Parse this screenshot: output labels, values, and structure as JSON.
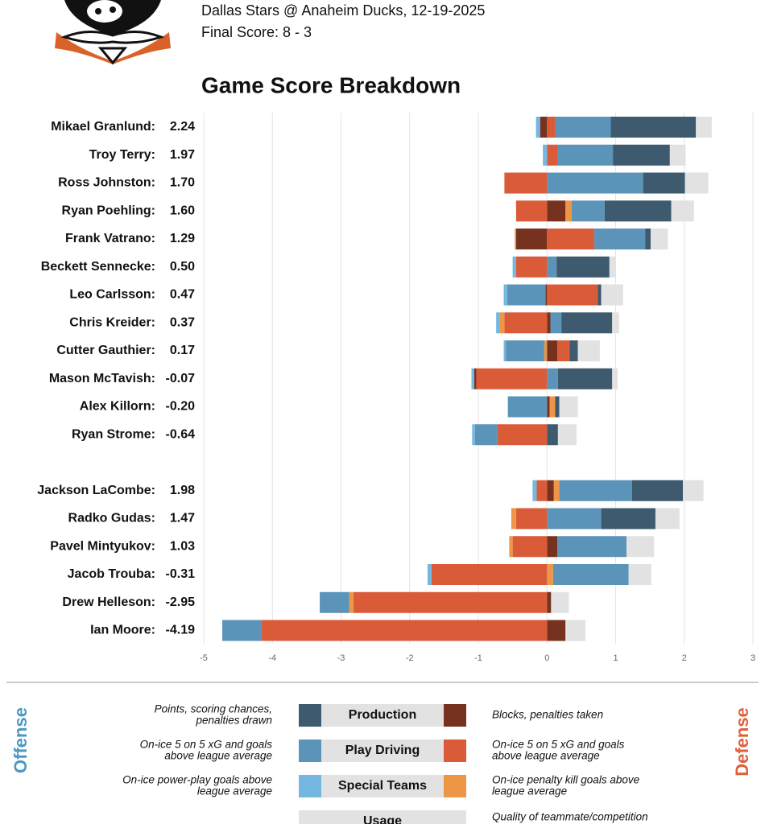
{
  "header": {
    "matchup": "Dallas Stars @ Anaheim Ducks, 12-19-2025",
    "final_score": "Final Score: 8 - 3"
  },
  "chart_data": {
    "type": "diverging-stacked-bar",
    "title": "Game Score Breakdown",
    "categories": [
      "Mikael Granlund:",
      "Troy Terry:",
      "Ross Johnston:",
      "Ryan Poehling:",
      "Frank Vatrano:",
      "Beckett Sennecke:",
      "Leo Carlsson:",
      "Chris Kreider:",
      "Cutter Gauthier:",
      "Mason McTavish:",
      "Alex Killorn:",
      "Ryan Strome:",
      null,
      "Jackson LaCombe:",
      "Radko Gudas:",
      "Pavel Mintyukov:",
      "Jacob Trouba:",
      "Drew Helleson:",
      "Ian Moore:"
    ],
    "game_scores": {
      "values": [
        2.24,
        1.97,
        1.7,
        1.6,
        1.29,
        0.5,
        0.47,
        0.37,
        0.17,
        -0.07,
        -0.2,
        -0.64,
        null,
        1.98,
        1.47,
        1.03,
        -0.31,
        -2.95,
        -4.19
      ],
      "value_labels": [
        "2.24",
        "1.97",
        "1.70",
        "1.60",
        "1.29",
        "0.50",
        "0.47",
        "0.37",
        "0.17",
        "-0.07",
        "-0.20",
        "-0.64",
        null,
        "1.98",
        "1.47",
        "1.03",
        "-0.31",
        "-2.95",
        "-4.19"
      ]
    },
    "series": [
      {
        "name": "Production",
        "color": "#3d5a6e",
        "values": [
          1.24,
          0.83,
          0.61,
          0.97,
          0.08,
          0.77,
          0.05,
          0.74,
          0.12,
          0.79,
          0.06,
          0.16,
          null,
          0.74,
          0.79,
          0,
          0,
          0,
          0
        ]
      },
      {
        "name": "Play Driving",
        "color": "#5b94b8",
        "values": [
          0.81,
          0.8,
          1.4,
          0.48,
          0.74,
          0.14,
          -0.56,
          0.16,
          -0.56,
          0.16,
          -0.57,
          -0.33,
          null,
          1.06,
          0.79,
          1.01,
          1.1,
          -0.43,
          -0.57
        ]
      },
      {
        "name": "Special Teams",
        "color": "#74b7e0",
        "values": [
          -0.06,
          -0.06,
          0,
          0,
          0,
          -0.05,
          -0.05,
          -0.05,
          -0.03,
          -0.04,
          0,
          -0.04,
          null,
          -0.06,
          0,
          0,
          -0.06,
          0,
          0
        ]
      },
      {
        "name": "Production",
        "color": "#76321f",
        "values": [
          -0.1,
          0,
          0,
          0.27,
          -0.45,
          0,
          -0.02,
          0.05,
          0.15,
          -0.03,
          0.04,
          0,
          null,
          0.1,
          0,
          0.15,
          0,
          0.06,
          0.27
        ]
      },
      {
        "name": "Play Driving",
        "color": "#da5b38",
        "values": [
          0.12,
          0.16,
          -0.62,
          -0.45,
          0.69,
          -0.45,
          0.74,
          -0.62,
          0.18,
          -1.03,
          0,
          -0.72,
          null,
          -0.15,
          -0.45,
          -0.5,
          -1.68,
          -2.82,
          -4.16
        ]
      },
      {
        "name": "Special Teams",
        "color": "#ec9646",
        "values": [
          0,
          0,
          0,
          0.09,
          -0.02,
          0,
          0,
          -0.07,
          -0.04,
          0,
          0.08,
          0,
          null,
          0.08,
          -0.07,
          -0.05,
          0.09,
          -0.06,
          0
        ]
      },
      {
        "name": "Usage",
        "color": "#e2e2e2",
        "values": [
          0.23,
          0.23,
          0.34,
          0.33,
          0.25,
          0.09,
          0.32,
          0.1,
          0.32,
          0.08,
          0.27,
          0.27,
          null,
          0.3,
          0.35,
          0.4,
          0.33,
          0.26,
          0.29
        ]
      }
    ],
    "xlim": [
      -5,
      3
    ],
    "xticks": [
      -5,
      -4,
      -3,
      -2,
      -1,
      0,
      1,
      2,
      3
    ],
    "grid": true,
    "legend": {
      "offense_title": "Offense",
      "defense_title": "Defense",
      "rows": [
        {
          "offense_note": [
            "Points, scoring chances,",
            "penalties drawn"
          ],
          "defense_note": [
            "Blocks, penalties taken"
          ]
        },
        {
          "offense_note": [
            "On-ice 5 on 5 xG and goals",
            "above league average"
          ],
          "defense_note": [
            "On-ice 5 on 5 xG and goals",
            "above league average"
          ]
        },
        {
          "offense_note": [
            "On-ice power-play goals above",
            "league average"
          ],
          "defense_note": [
            "On-ice penalty kill goals above",
            "league average"
          ]
        },
        {
          "offense_note": [],
          "defense_note": [
            "Quality of teammate/competition"
          ]
        }
      ]
    }
  }
}
